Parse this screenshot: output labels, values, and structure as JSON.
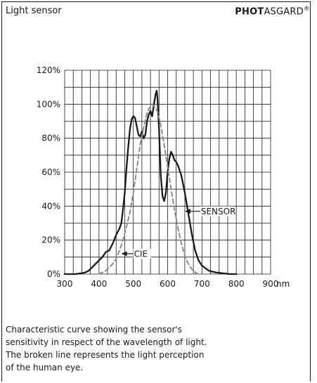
{
  "header": {
    "title": "Light sensor",
    "brand_bold": "PHOT",
    "brand_rest": "ASGARD",
    "brand_mark": "®"
  },
  "caption": [
    "Characteristic curve showing the sensor's",
    "sensitivity in respect of the wavelength of light.",
    "The broken line represents the light perception",
    "of the human eye."
  ],
  "chart_data": {
    "type": "line",
    "x_unit": "nm",
    "xlim": [
      300,
      900
    ],
    "ylim": [
      0,
      120
    ],
    "x_ticks": [
      "300",
      "400",
      "500",
      "600",
      "700",
      "800",
      "900"
    ],
    "y_ticks": [
      "0%",
      "20%",
      "40%",
      "60%",
      "80%",
      "100%",
      "120%"
    ],
    "grid": true,
    "series": [
      {
        "name": "SENSOR",
        "style": "solid",
        "color": "#1a1a1a",
        "x": [
          300,
          330,
          350,
          360,
          370,
          380,
          390,
          400,
          410,
          420,
          430,
          440,
          450,
          460,
          465,
          470,
          475,
          480,
          485,
          490,
          495,
          500,
          505,
          510,
          515,
          520,
          525,
          530,
          535,
          540,
          545,
          550,
          555,
          560,
          565,
          568,
          570,
          575,
          580,
          585,
          590,
          595,
          600,
          605,
          610,
          615,
          620,
          625,
          630,
          640,
          650,
          660,
          670,
          680,
          690,
          700,
          720,
          740,
          760,
          780,
          800
        ],
        "y": [
          0,
          0,
          0.5,
          1,
          2,
          4,
          6,
          8,
          10,
          13,
          14,
          18,
          23,
          27,
          30,
          38,
          48,
          62,
          74,
          85,
          91,
          93,
          92,
          87,
          82,
          81,
          84,
          80,
          82,
          90,
          94,
          96,
          93,
          100,
          106,
          108,
          105,
          85,
          58,
          46,
          43,
          48,
          60,
          68,
          72,
          70,
          67,
          66,
          64,
          58,
          48,
          36,
          24,
          14,
          8,
          5,
          2,
          1,
          0.5,
          0,
          0
        ]
      },
      {
        "name": "CIE",
        "style": "dashed",
        "color": "#8c8c8c",
        "x": [
          400,
          410,
          420,
          430,
          440,
          450,
          460,
          470,
          480,
          490,
          500,
          510,
          520,
          530,
          540,
          550,
          555,
          560,
          570,
          580,
          590,
          600,
          610,
          620,
          630,
          640,
          650,
          660,
          670,
          680,
          690
        ],
        "y": [
          0,
          1,
          2,
          4,
          6,
          9,
          14,
          20,
          28,
          36,
          48,
          62,
          76,
          86,
          95,
          99,
          100,
          99,
          96,
          88,
          76,
          63,
          50,
          38,
          27,
          18,
          11,
          6,
          3,
          1,
          0
        ]
      }
    ],
    "annotations": [
      {
        "text": "SENSOR",
        "series": "SENSOR"
      },
      {
        "text": "CIE",
        "series": "CIE"
      }
    ]
  }
}
